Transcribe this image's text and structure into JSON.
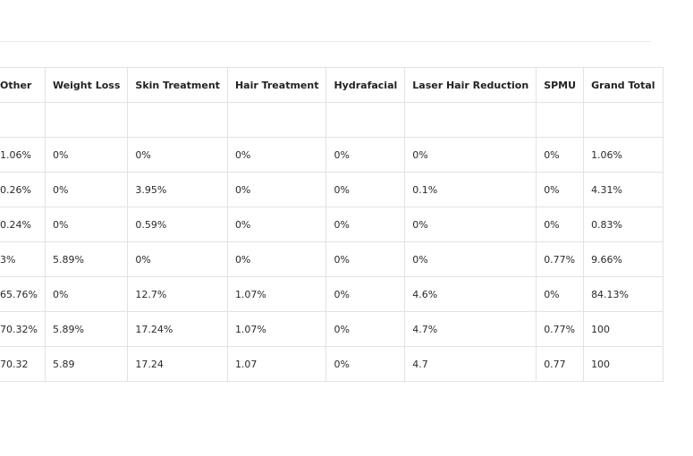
{
  "table": {
    "headers": [
      "Other",
      "Weight Loss",
      "Skin Treatment",
      "Hair Treatment",
      "Hydrafacial",
      "Laser Hair Reduction",
      "SPMU",
      "Grand Total"
    ],
    "rows": [
      [
        "",
        "",
        "",
        "",
        "",
        "",
        "",
        ""
      ],
      [
        "1.06%",
        "0%",
        "0%",
        "0%",
        "0%",
        "0%",
        "0%",
        "1.06%"
      ],
      [
        "0.26%",
        "0%",
        "3.95%",
        "0%",
        "0%",
        "0.1%",
        "0%",
        "4.31%"
      ],
      [
        "0.24%",
        "0%",
        "0.59%",
        "0%",
        "0%",
        "0%",
        "0%",
        "0.83%"
      ],
      [
        "3%",
        "5.89%",
        "0%",
        "0%",
        "0%",
        "0%",
        "0.77%",
        "9.66%"
      ],
      [
        "65.76%",
        "0%",
        "12.7%",
        "1.07%",
        "0%",
        "4.6%",
        "0%",
        "84.13%"
      ],
      [
        "70.32%",
        "5.89%",
        "17.24%",
        "1.07%",
        "0%",
        "4.7%",
        "0.77%",
        "100"
      ],
      [
        "70.32",
        "5.89",
        "17.24",
        "1.07",
        "0%",
        "4.7",
        "0.77",
        "100"
      ]
    ]
  }
}
